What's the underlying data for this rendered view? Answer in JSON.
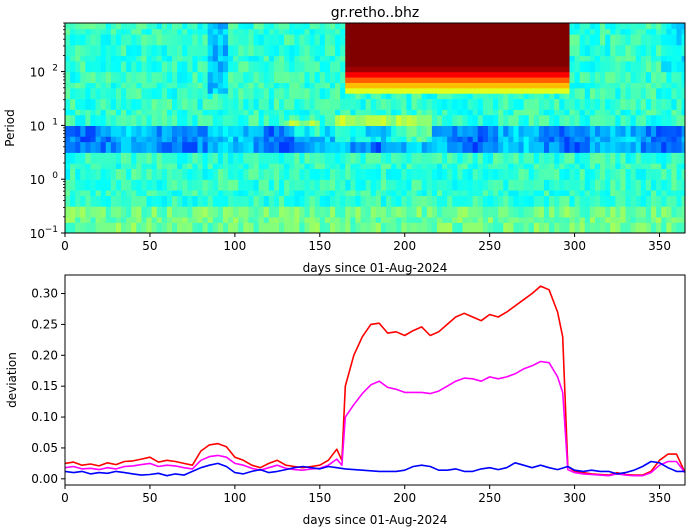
{
  "chart_data": [
    {
      "type": "heatmap",
      "title": "gr.retho..bhz",
      "xlabel": "days since 01-Aug-2024",
      "ylabel": "Period",
      "xlim": [
        0,
        365
      ],
      "ylim": [
        0.1,
        800
      ],
      "yscale": "log",
      "xticks": [
        0,
        50,
        100,
        150,
        200,
        250,
        300,
        350
      ],
      "yticks": [
        {
          "value": 0.1,
          "base": "10",
          "exp": "−1"
        },
        {
          "value": 1,
          "base": "10",
          "exp": "0"
        },
        {
          "value": 10,
          "base": "10",
          "exp": "1"
        },
        {
          "value": 100,
          "base": "10",
          "exp": "2"
        }
      ],
      "colormap": "jet",
      "features": [
        {
          "kind": "saturated-block",
          "x": [
            166,
            296
          ],
          "period": [
            120,
            800
          ],
          "level": 1.0
        },
        {
          "kind": "microseism-band",
          "period": [
            4,
            10
          ],
          "level": "low"
        }
      ]
    },
    {
      "type": "line",
      "xlabel": "days since 01-Aug-2024",
      "ylabel": "deviation",
      "xlim": [
        0,
        365
      ],
      "ylim": [
        -0.01,
        0.33
      ],
      "xticks": [
        0,
        50,
        100,
        150,
        200,
        250,
        300,
        350
      ],
      "yticks": [
        0.0,
        0.05,
        0.1,
        0.15,
        0.2,
        0.25,
        0.3
      ],
      "yticklabels": [
        "0.00",
        "0.05",
        "0.10",
        "0.15",
        "0.20",
        "0.25",
        "0.30"
      ],
      "series": [
        {
          "color": "#ff0000",
          "x": [
            0,
            5,
            10,
            15,
            20,
            25,
            30,
            35,
            40,
            45,
            50,
            55,
            60,
            65,
            70,
            75,
            80,
            85,
            90,
            95,
            100,
            105,
            110,
            115,
            120,
            125,
            130,
            135,
            140,
            145,
            150,
            155,
            160,
            163,
            165,
            170,
            175,
            180,
            185,
            190,
            195,
            200,
            205,
            210,
            215,
            220,
            225,
            230,
            235,
            240,
            245,
            250,
            255,
            260,
            265,
            270,
            275,
            280,
            285,
            290,
            293,
            296,
            300,
            305,
            310,
            315,
            320,
            325,
            330,
            335,
            340,
            345,
            350,
            355,
            360,
            365
          ],
          "y": [
            0.025,
            0.027,
            0.022,
            0.024,
            0.021,
            0.026,
            0.023,
            0.028,
            0.029,
            0.032,
            0.035,
            0.027,
            0.03,
            0.028,
            0.025,
            0.022,
            0.045,
            0.055,
            0.057,
            0.052,
            0.035,
            0.03,
            0.022,
            0.018,
            0.025,
            0.03,
            0.022,
            0.02,
            0.018,
            0.02,
            0.022,
            0.03,
            0.048,
            0.03,
            0.15,
            0.2,
            0.23,
            0.25,
            0.252,
            0.236,
            0.238,
            0.232,
            0.24,
            0.246,
            0.232,
            0.238,
            0.25,
            0.262,
            0.268,
            0.262,
            0.256,
            0.266,
            0.262,
            0.27,
            0.28,
            0.29,
            0.3,
            0.312,
            0.306,
            0.27,
            0.23,
            0.02,
            0.012,
            0.01,
            0.008,
            0.007,
            0.006,
            0.01,
            0.007,
            0.006,
            0.006,
            0.012,
            0.03,
            0.04,
            0.04,
            0.01
          ]
        },
        {
          "color": "#ff00ff",
          "x": [
            0,
            5,
            10,
            15,
            20,
            25,
            30,
            35,
            40,
            45,
            50,
            55,
            60,
            65,
            70,
            75,
            80,
            85,
            90,
            95,
            100,
            105,
            110,
            115,
            120,
            125,
            130,
            135,
            140,
            145,
            150,
            155,
            160,
            163,
            165,
            170,
            175,
            180,
            185,
            190,
            195,
            200,
            205,
            210,
            215,
            220,
            225,
            230,
            235,
            240,
            245,
            250,
            255,
            260,
            265,
            270,
            275,
            280,
            285,
            290,
            293,
            296,
            300,
            305,
            310,
            315,
            320,
            325,
            330,
            335,
            340,
            345,
            350,
            355,
            360,
            365
          ],
          "y": [
            0.018,
            0.02,
            0.016,
            0.017,
            0.015,
            0.018,
            0.016,
            0.02,
            0.021,
            0.023,
            0.025,
            0.02,
            0.022,
            0.021,
            0.018,
            0.016,
            0.03,
            0.036,
            0.038,
            0.035,
            0.025,
            0.022,
            0.017,
            0.014,
            0.018,
            0.022,
            0.017,
            0.015,
            0.014,
            0.016,
            0.017,
            0.022,
            0.032,
            0.022,
            0.1,
            0.12,
            0.138,
            0.152,
            0.158,
            0.148,
            0.145,
            0.14,
            0.14,
            0.14,
            0.138,
            0.142,
            0.15,
            0.158,
            0.163,
            0.162,
            0.158,
            0.165,
            0.162,
            0.165,
            0.17,
            0.178,
            0.183,
            0.19,
            0.188,
            0.165,
            0.14,
            0.015,
            0.01,
            0.008,
            0.007,
            0.006,
            0.005,
            0.008,
            0.006,
            0.005,
            0.005,
            0.01,
            0.022,
            0.028,
            0.028,
            0.01
          ]
        },
        {
          "color": "#0000ff",
          "x": [
            0,
            5,
            10,
            15,
            20,
            25,
            30,
            35,
            40,
            45,
            50,
            55,
            60,
            65,
            70,
            75,
            80,
            85,
            90,
            95,
            100,
            105,
            110,
            115,
            120,
            125,
            130,
            135,
            140,
            145,
            150,
            155,
            160,
            165,
            170,
            175,
            180,
            185,
            190,
            195,
            200,
            205,
            210,
            215,
            220,
            225,
            230,
            235,
            240,
            245,
            250,
            255,
            260,
            265,
            270,
            275,
            280,
            285,
            290,
            296,
            300,
            305,
            310,
            315,
            320,
            325,
            330,
            335,
            340,
            345,
            350,
            355,
            360,
            365
          ],
          "y": [
            0.012,
            0.01,
            0.012,
            0.008,
            0.01,
            0.009,
            0.012,
            0.01,
            0.008,
            0.006,
            0.007,
            0.009,
            0.005,
            0.008,
            0.006,
            0.012,
            0.018,
            0.022,
            0.025,
            0.02,
            0.01,
            0.008,
            0.012,
            0.015,
            0.01,
            0.012,
            0.015,
            0.018,
            0.02,
            0.018,
            0.016,
            0.02,
            0.018,
            0.016,
            0.015,
            0.014,
            0.013,
            0.012,
            0.012,
            0.012,
            0.014,
            0.02,
            0.022,
            0.02,
            0.014,
            0.014,
            0.016,
            0.012,
            0.012,
            0.016,
            0.018,
            0.015,
            0.018,
            0.026,
            0.022,
            0.018,
            0.022,
            0.018,
            0.015,
            0.02,
            0.014,
            0.012,
            0.014,
            0.012,
            0.012,
            0.008,
            0.01,
            0.014,
            0.02,
            0.028,
            0.026,
            0.018,
            0.012,
            0.012
          ]
        }
      ]
    }
  ]
}
